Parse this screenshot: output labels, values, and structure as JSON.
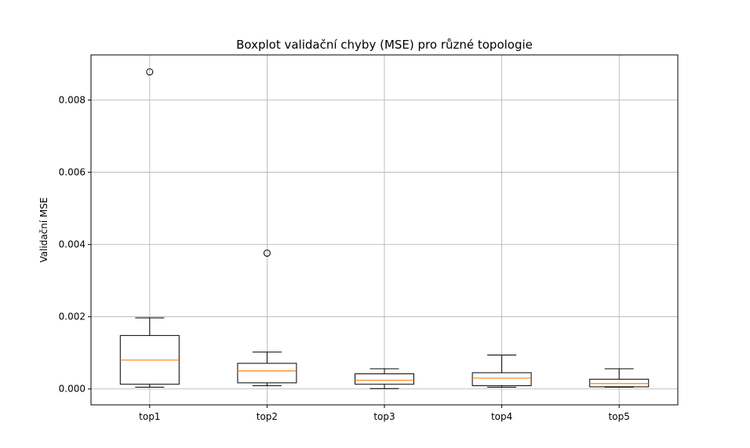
{
  "chart_data": {
    "type": "boxplot",
    "title": "Boxplot validační chyby (MSE) pro různé topologie",
    "xlabel": "",
    "ylabel": "Validační MSE",
    "ylim": [
      -0.00044,
      0.00925
    ],
    "yticks": [
      "0.000",
      "0.002",
      "0.004",
      "0.006",
      "0.008"
    ],
    "grid": true,
    "categories": [
      "top1",
      "top2",
      "top3",
      "top4",
      "top5"
    ],
    "boxes": [
      {
        "whisker_low": 5e-05,
        "q1": 0.00013,
        "median": 0.0008,
        "q3": 0.00148,
        "whisker_high": 0.00197,
        "outliers": [
          0.00878
        ]
      },
      {
        "whisker_low": 9e-05,
        "q1": 0.00017,
        "median": 0.0005,
        "q3": 0.00071,
        "whisker_high": 0.00102,
        "outliers": [
          0.00376
        ]
      },
      {
        "whisker_low": 1e-05,
        "q1": 0.00013,
        "median": 0.00024,
        "q3": 0.00042,
        "whisker_high": 0.00056,
        "outliers": []
      },
      {
        "whisker_low": 5e-05,
        "q1": 9e-05,
        "median": 0.0003,
        "q3": 0.00045,
        "whisker_high": 0.00094,
        "outliers": []
      },
      {
        "whisker_low": 5e-05,
        "q1": 6e-05,
        "median": 0.00015,
        "q3": 0.00027,
        "whisker_high": 0.00056,
        "outliers": []
      }
    ],
    "colors": {
      "box": "#000000",
      "median": "#ff7f0e",
      "grid": "#b0b0b0"
    }
  }
}
